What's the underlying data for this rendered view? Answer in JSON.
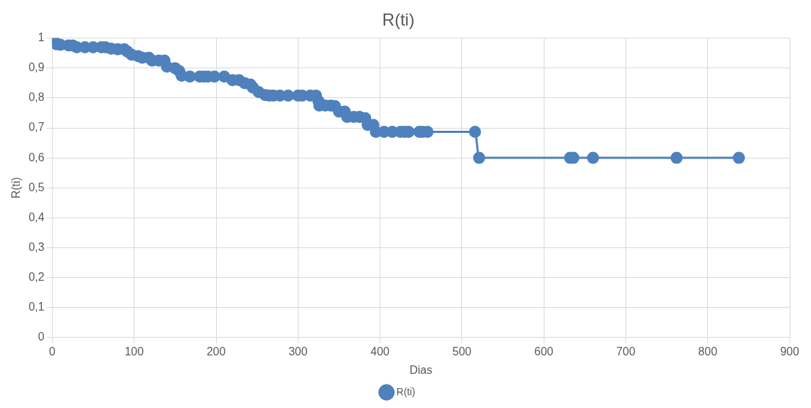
{
  "chart_data": {
    "type": "line",
    "title": "R(ti)",
    "xlabel": "Dias",
    "ylabel": "R(ti)",
    "series": [
      {
        "name": "R(ti)",
        "color": "#4f81bd",
        "x": [
          0,
          2,
          5,
          10,
          20,
          25,
          30,
          40,
          50,
          60,
          65,
          72,
          80,
          88,
          92,
          97,
          105,
          110,
          118,
          122,
          130,
          137,
          140,
          150,
          155,
          158,
          168,
          180,
          185,
          190,
          198,
          210,
          220,
          228,
          235,
          242,
          245,
          252,
          260,
          265,
          270,
          278,
          288,
          300,
          305,
          315,
          322,
          325,
          326,
          333,
          340,
          345,
          350,
          357,
          360,
          368,
          375,
          382,
          385,
          392,
          395,
          405,
          415,
          425,
          430,
          435,
          448,
          452,
          458,
          516,
          521,
          632,
          636,
          660,
          762,
          838
        ],
        "values": [
          1,
          1,
          0.98,
          0.978,
          0.976,
          0.976,
          0.97,
          0.97,
          0.97,
          0.97,
          0.97,
          0.965,
          0.963,
          0.963,
          0.955,
          0.945,
          0.94,
          0.935,
          0.935,
          0.925,
          0.925,
          0.925,
          0.905,
          0.9,
          0.89,
          0.875,
          0.872,
          0.872,
          0.872,
          0.872,
          0.872,
          0.872,
          0.86,
          0.86,
          0.85,
          0.845,
          0.835,
          0.82,
          0.81,
          0.808,
          0.808,
          0.808,
          0.808,
          0.808,
          0.808,
          0.808,
          0.808,
          0.79,
          0.775,
          0.775,
          0.775,
          0.773,
          0.755,
          0.755,
          0.737,
          0.737,
          0.737,
          0.733,
          0.71,
          0.71,
          0.687,
          0.687,
          0.687,
          0.687,
          0.687,
          0.687,
          0.687,
          0.687,
          0.687,
          0.687,
          0.6,
          0.6,
          0.6,
          0.6,
          0.6,
          0.6
        ]
      }
    ],
    "xlim": [
      0,
      900
    ],
    "xticks": [
      0,
      100,
      200,
      300,
      400,
      500,
      600,
      700,
      800,
      900
    ],
    "ylim": [
      0,
      1
    ],
    "yticks": [
      0,
      {
        "value": 0.1,
        "label": "0,1"
      },
      {
        "value": 0.2,
        "label": "0,2"
      },
      {
        "value": 0.3,
        "label": "0,3"
      },
      {
        "value": 0.4,
        "label": "0,4"
      },
      {
        "value": 0.5,
        "label": "0,5"
      },
      {
        "value": 0.6,
        "label": "0,6"
      },
      {
        "value": 0.7,
        "label": "0,7"
      },
      {
        "value": 0.8,
        "label": "0,8"
      },
      {
        "value": 0.9,
        "label": "0,9"
      },
      1
    ],
    "grid": true,
    "legend": "bottom",
    "marker": "circle",
    "line_style": "solid"
  }
}
